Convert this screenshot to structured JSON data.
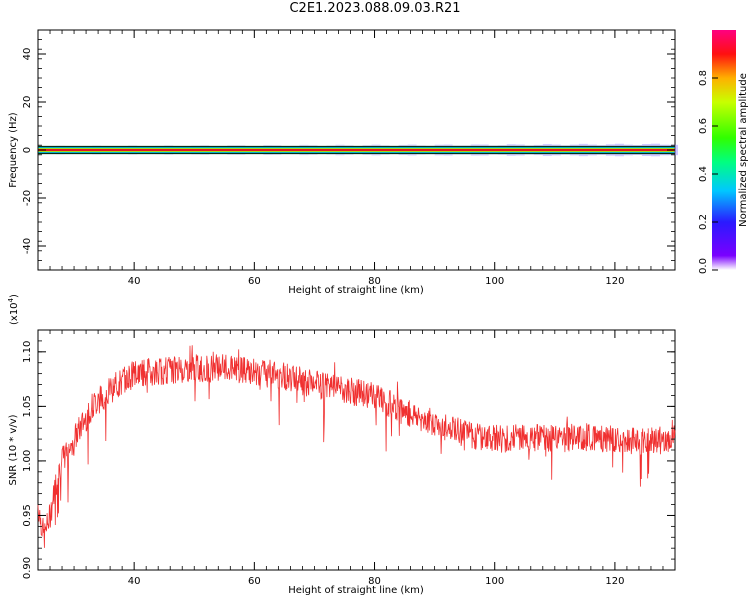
{
  "title": "C2E1.2023.088.09.03.R21",
  "chart_data": [
    {
      "type": "heatmap",
      "title": "C2E1.2023.088.09.03.R21",
      "xlabel": "Height of straight line (km)",
      "ylabel": "Frequency (Hz)",
      "xlim": [
        24,
        130
      ],
      "ylim": [
        -50,
        50
      ],
      "xticks": [
        40,
        60,
        80,
        100,
        120
      ],
      "yticks": [
        -40,
        -20,
        0,
        20,
        40
      ],
      "colorbar": {
        "label": "Normalized spectral amplitude",
        "range": [
          0,
          1
        ],
        "ticks": [
          0.0,
          0.2,
          0.4,
          0.6,
          0.8
        ],
        "colormap": "rainbow"
      },
      "band_center_hz": 0,
      "band_halfwidth_hz": 1.5
    },
    {
      "type": "line",
      "xlabel": "Height of straight line (km)",
      "ylabel": "SNR (10 * v/v)",
      "yscale_label": "(x10",
      "yscale_exp": "4",
      "yscale_close": ")",
      "xlim": [
        24,
        130
      ],
      "ylim": [
        0.9,
        1.12
      ],
      "xticks": [
        40,
        60,
        80,
        100,
        120
      ],
      "yticks": [
        0.9,
        0.95,
        1.0,
        1.05,
        1.1
      ],
      "series": [
        {
          "color": "#f03030",
          "trend": {
            "x": [
              24,
              25,
              26,
              27,
              28,
              30,
              33,
              36,
              40,
              45,
              50,
              55,
              60,
              65,
              70,
              75,
              80,
              85,
              90,
              95,
              100,
              105,
              110,
              115,
              120,
              125,
              130
            ],
            "y": [
              0.96,
              0.93,
              0.95,
              0.98,
              1.0,
              1.02,
              1.05,
              1.065,
              1.08,
              1.083,
              1.085,
              1.085,
              1.082,
              1.078,
              1.07,
              1.065,
              1.06,
              1.045,
              1.035,
              1.025,
              1.02,
              1.022,
              1.02,
              1.022,
              1.02,
              1.018,
              1.02
            ]
          }
        }
      ]
    }
  ]
}
